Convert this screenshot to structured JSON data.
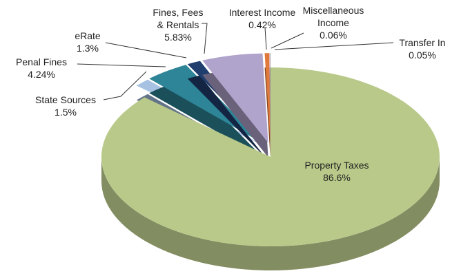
{
  "chart_data": {
    "type": "pie3d",
    "categories": [
      "Property Taxes",
      "State Sources",
      "Penal Fines",
      "eRate",
      "Fines, Fees & Rentals",
      "Interest Income",
      "Miscellaneous Income",
      "Transfer In"
    ],
    "values": [
      86.6,
      1.5,
      4.24,
      1.3,
      5.83,
      0.42,
      0.06,
      0.05
    ],
    "value_labels": [
      "86.6%",
      "1.5%",
      "4.24%",
      "1.3%",
      "5.83%",
      "0.42%",
      "0.06%",
      "0.05%"
    ],
    "colors": [
      "#b9c98a",
      "#a7c1e2",
      "#2d8597",
      "#1f3e6e",
      "#b0a3cc",
      "#e0783a",
      "#d9a0a8",
      "#9a9a9a"
    ]
  }
}
